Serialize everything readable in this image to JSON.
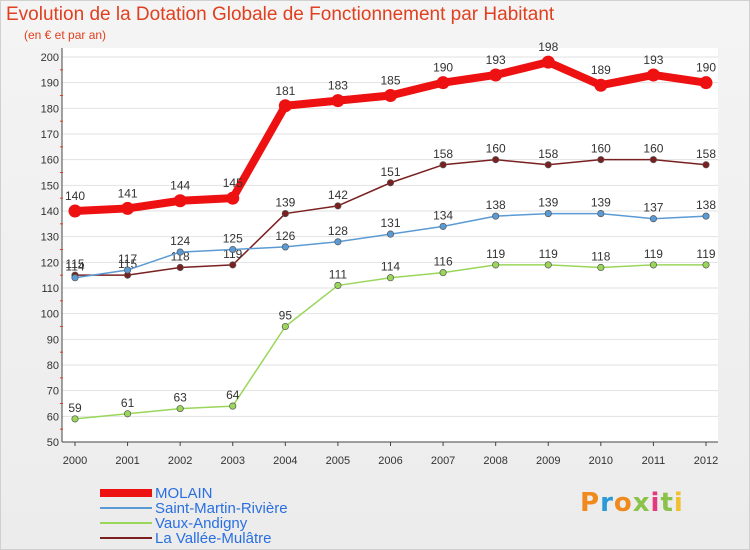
{
  "header": {
    "title": "Evolution de la Dotation Globale de Fonctionnement par Habitant",
    "subtitle": "(en € et par an)"
  },
  "chart_data": {
    "type": "line",
    "title": "Evolution de la Dotation Globale de Fonctionnement par Habitant",
    "subtitle": "(en € et par an)",
    "xlabel": "",
    "ylabel": "",
    "ylim": [
      50,
      200
    ],
    "yticks": [
      "50",
      "60",
      "70",
      "80",
      "90",
      "100",
      "110",
      "120",
      "130",
      "140",
      "150",
      "160",
      "170",
      "180",
      "190",
      "200"
    ],
    "categories": [
      "2000",
      "2001",
      "2002",
      "2003",
      "2004",
      "2005",
      "2006",
      "2007",
      "2008",
      "2009",
      "2010",
      "2011",
      "2012"
    ],
    "grid": "horizontal",
    "legend_position": "bottom-left",
    "series": [
      {
        "name": "MOLAIN",
        "color": "#ee1111",
        "values": [
          140,
          141,
          144,
          145,
          181,
          183,
          185,
          190,
          193,
          198,
          189,
          193,
          190
        ]
      },
      {
        "name": "Saint-Martin-Rivière",
        "color": "#5b9bd5",
        "values": [
          114,
          117,
          124,
          125,
          126,
          128,
          131,
          134,
          138,
          139,
          139,
          137,
          138
        ]
      },
      {
        "name": "Vaux-Andigny",
        "color": "#9ad65a",
        "values": [
          59,
          61,
          63,
          64,
          95,
          111,
          114,
          116,
          119,
          119,
          118,
          119,
          119
        ]
      },
      {
        "name": "La Vallée-Mulâtre",
        "color": "#7a2020",
        "values": [
          115,
          115,
          118,
          119,
          139,
          142,
          151,
          158,
          160,
          158,
          160,
          160,
          158
        ]
      }
    ]
  },
  "legend": {
    "items": [
      {
        "label": "MOLAIN",
        "color": "#ee1111"
      },
      {
        "label": "Saint-Martin-Rivière",
        "color": "#5b9bd5"
      },
      {
        "label": "Vaux-Andigny",
        "color": "#9ad65a"
      },
      {
        "label": "La Vallée-Mulâtre",
        "color": "#7a2020"
      }
    ]
  },
  "logo": {
    "text": "Proxiti",
    "letters": [
      "P",
      "r",
      "o",
      "x",
      "i",
      "t",
      "i"
    ],
    "colors": [
      "#f08a1c",
      "#2a9ad8",
      "#f08a1c",
      "#8bc34a",
      "#e23a7c",
      "#8bc34a",
      "#f0c030"
    ]
  }
}
